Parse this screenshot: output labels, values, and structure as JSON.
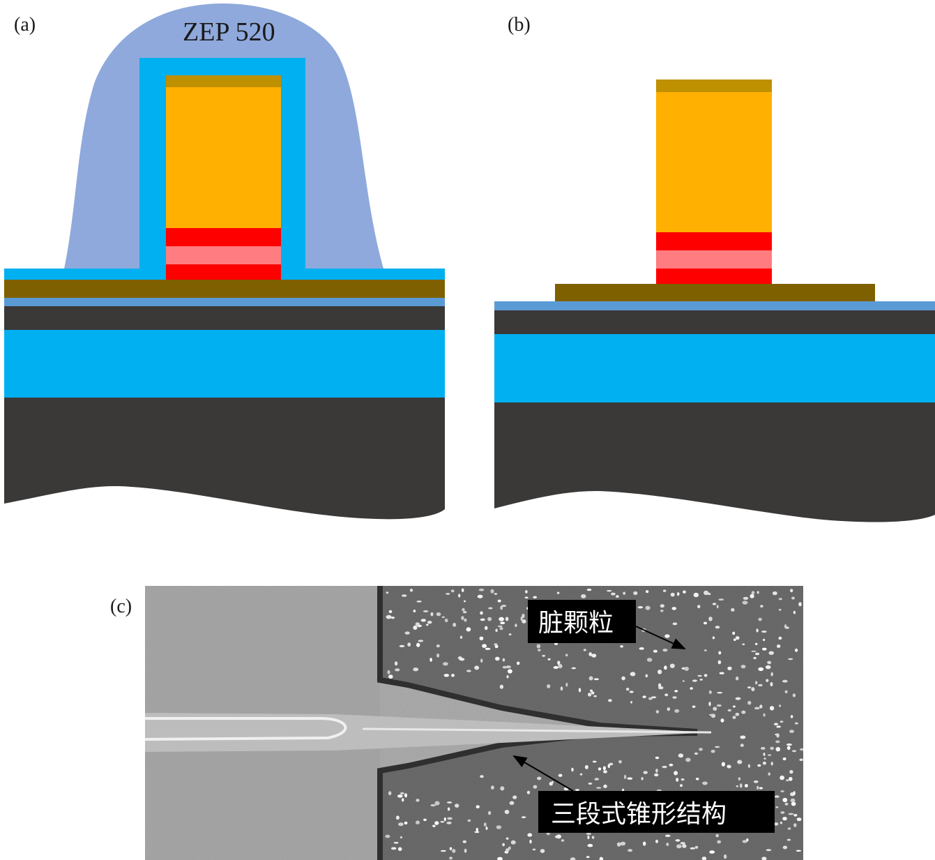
{
  "panels": {
    "a": {
      "label": "(a)",
      "resist_label": "ZEP 520"
    },
    "b": {
      "label": "(b)"
    },
    "c": {
      "label": "(c)",
      "annotation_particles": "脏颗粒",
      "annotation_taper": "三段式锥形结构"
    }
  },
  "colors": {
    "resist": "#8fa9dc",
    "cladding_cyan": "#00b0f0",
    "gold": "#ffb000",
    "gold_cap": "#bf9000",
    "red": "#ff0000",
    "pink": "#ff7c80",
    "brown": "#7f6000",
    "thin_blue": "#5b9bd5",
    "substrate": "#3b3838",
    "sem_bg_left": "#a8a8a8",
    "sem_bg_right": "#6e6e6e",
    "label_box": "#000000"
  },
  "icons": [
    "arrow-particles-icon",
    "arrow-taper-icon"
  ]
}
